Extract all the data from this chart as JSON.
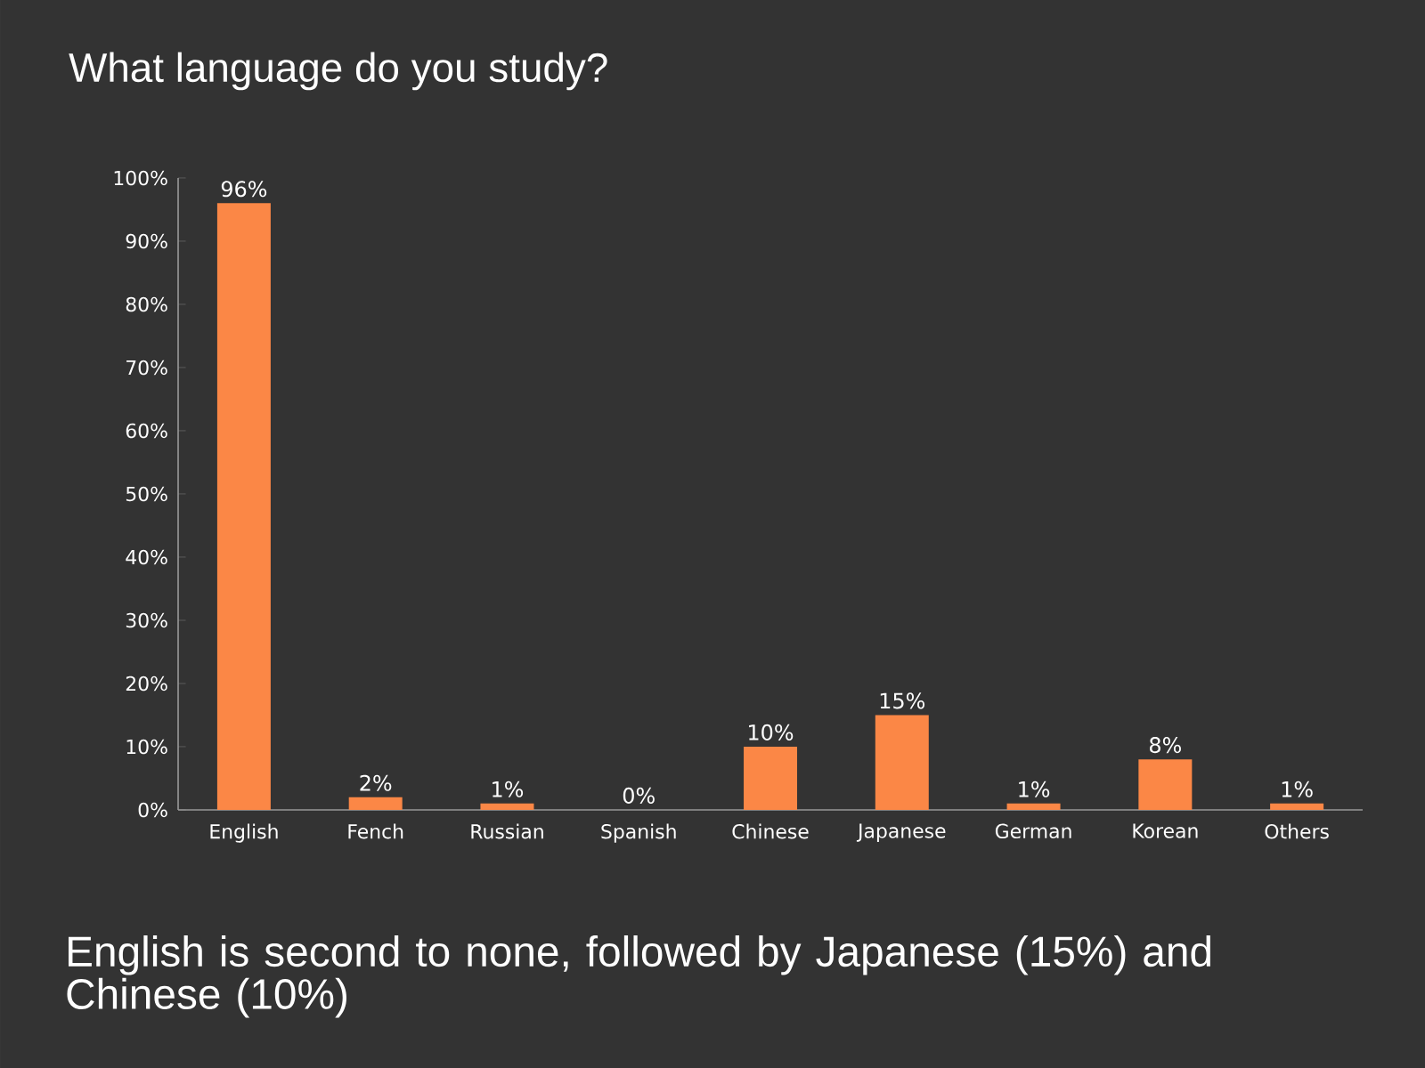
{
  "chart_data": {
    "type": "bar",
    "title": "What language do you study?",
    "categories": [
      "English",
      "Fench",
      "Russian",
      "Spanish",
      "Chinese",
      "Japanese",
      "German",
      "Korean",
      "Others"
    ],
    "values": [
      96,
      2,
      1,
      0,
      10,
      15,
      1,
      8,
      1
    ],
    "value_labels": [
      "96%",
      "2%",
      "1%",
      "0%",
      "10%",
      "15%",
      "1%",
      "8%",
      "1%"
    ],
    "color": "#fb8746",
    "ylim": [
      0,
      100
    ],
    "yticks": [
      {
        "value": 0,
        "label": "0%"
      },
      {
        "value": 10,
        "label": "10%"
      },
      {
        "value": 20,
        "label": "20%"
      },
      {
        "value": 30,
        "label": "30%"
      },
      {
        "value": 40,
        "label": "40%"
      },
      {
        "value": 50,
        "label": "50%"
      },
      {
        "value": 60,
        "label": "60%"
      },
      {
        "value": 70,
        "label": "70%"
      },
      {
        "value": 80,
        "label": "80%"
      },
      {
        "value": 90,
        "label": "90%"
      },
      {
        "value": 100,
        "label": "100%"
      }
    ],
    "annotations": [
      "English is second to none, followed by Japanese (15%) and Chinese (10%)"
    ]
  }
}
